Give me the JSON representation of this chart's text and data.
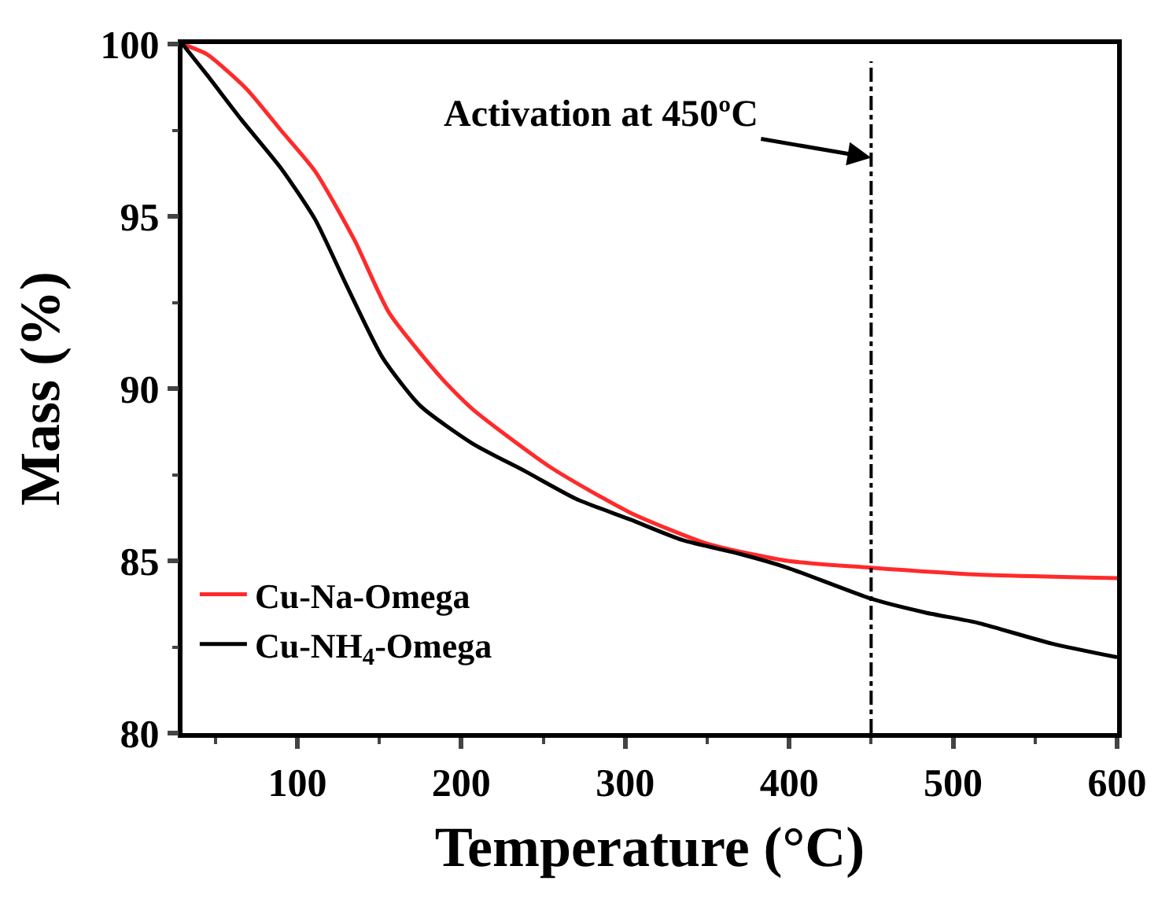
{
  "chart_data": {
    "type": "line",
    "xlabel": "Temperature (°C)",
    "ylabel": "Mass (%)",
    "xlim": [
      30,
      600
    ],
    "xticks": [
      100,
      200,
      300,
      400,
      500,
      600
    ],
    "ylim": [
      80,
      100
    ],
    "yticks": [
      80,
      85,
      90,
      95,
      100
    ],
    "series": [
      {
        "name": "Cu-Na-Omega",
        "color": "#ff2a2a",
        "x": [
          30,
          45,
          69,
          90,
          111,
          135,
          156,
          188,
          207,
          255,
          303,
          350,
          399,
          450,
          515,
          600
        ],
        "values": [
          100,
          99.7,
          98.7,
          97.5,
          96.3,
          94.3,
          92.2,
          90.3,
          89.4,
          87.7,
          86.4,
          85.5,
          85.0,
          84.8,
          84.6,
          84.5
        ]
      },
      {
        "name": "Cu-NH$_{4}$-Omega",
        "color": "#000000",
        "x": [
          30,
          45,
          66,
          90,
          111,
          130,
          152,
          175,
          207,
          239,
          270,
          303,
          335,
          370,
          399,
          450,
          483,
          515,
          560,
          600
        ],
        "values": [
          100,
          99.1,
          97.8,
          96.4,
          94.9,
          93.0,
          90.9,
          89.5,
          88.4,
          87.6,
          86.8,
          86.2,
          85.6,
          85.2,
          84.8,
          83.9,
          83.5,
          83.2,
          82.6,
          82.2
        ]
      }
    ],
    "ref_lines": [
      {
        "axis": "x",
        "value": 450,
        "color": "#000000",
        "line_style": "dashed"
      }
    ],
    "annotations": [
      {
        "text": "Activation at 450ºC",
        "x": 450,
        "y": 96.7
      }
    ],
    "legend": "bottom left",
    "marker": "none",
    "line_style": "solid"
  }
}
